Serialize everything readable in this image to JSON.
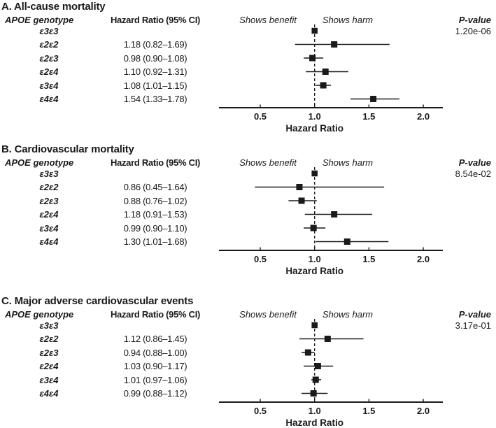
{
  "colors": {
    "ink": "#1a1a1a",
    "background": "#ffffff"
  },
  "figure": {
    "columns": {
      "genotype_header": "APOE genotype",
      "hr_header": "Hazard Ratio (95% CI)",
      "benefit_label": "Shows benefit",
      "harm_label": "Shows harm",
      "pvalue_header": "P-value"
    }
  },
  "chart_data": [
    {
      "type": "forest",
      "title": "A. All-cause mortality",
      "p_value": "1.20e-06",
      "xlabel": "Hazard Ratio",
      "xticks": [
        "0.5",
        "1.0",
        "1.5",
        "2.0"
      ],
      "xtick_values": [
        0.5,
        1.0,
        1.5,
        2.0
      ],
      "xlim": [
        0.12,
        2.18
      ],
      "reference_line": 1.0,
      "rows": [
        {
          "genotype": "ε3ε3",
          "ci_text": "",
          "hr": 1.0,
          "lo": null,
          "hi": null,
          "reference": true
        },
        {
          "genotype": "ε2ε2",
          "ci_text": "1.18 (0.82–1.69)",
          "hr": 1.18,
          "lo": 0.82,
          "hi": 1.69,
          "reference": false
        },
        {
          "genotype": "ε2ε3",
          "ci_text": "0.98 (0.90–1.08)",
          "hr": 0.98,
          "lo": 0.9,
          "hi": 1.08,
          "reference": false
        },
        {
          "genotype": "ε2ε4",
          "ci_text": "1.10 (0.92–1.31)",
          "hr": 1.1,
          "lo": 0.92,
          "hi": 1.31,
          "reference": false
        },
        {
          "genotype": "ε3ε4",
          "ci_text": "1.08 (1.01–1.15)",
          "hr": 1.08,
          "lo": 1.01,
          "hi": 1.15,
          "reference": false
        },
        {
          "genotype": "ε4ε4",
          "ci_text": "1.54 (1.33–1.78)",
          "hr": 1.54,
          "lo": 1.33,
          "hi": 1.78,
          "reference": false
        }
      ]
    },
    {
      "type": "forest",
      "title": "B. Cardiovascular mortality",
      "p_value": "8.54e-02",
      "xlabel": "Hazard Ratio",
      "xticks": [
        "0.5",
        "1.0",
        "1.5",
        "2.0"
      ],
      "xtick_values": [
        0.5,
        1.0,
        1.5,
        2.0
      ],
      "xlim": [
        0.12,
        2.18
      ],
      "reference_line": 1.0,
      "rows": [
        {
          "genotype": "ε3ε3",
          "ci_text": "",
          "hr": 1.0,
          "lo": null,
          "hi": null,
          "reference": true
        },
        {
          "genotype": "ε2ε2",
          "ci_text": "0.86 (0.45–1.64)",
          "hr": 0.86,
          "lo": 0.45,
          "hi": 1.64,
          "reference": false
        },
        {
          "genotype": "ε2ε3",
          "ci_text": "0.88 (0.76–1.02)",
          "hr": 0.88,
          "lo": 0.76,
          "hi": 1.02,
          "reference": false
        },
        {
          "genotype": "ε2ε4",
          "ci_text": "1.18 (0.91–1.53)",
          "hr": 1.18,
          "lo": 0.91,
          "hi": 1.53,
          "reference": false
        },
        {
          "genotype": "ε3ε4",
          "ci_text": "0.99 (0.90–1.10)",
          "hr": 0.99,
          "lo": 0.9,
          "hi": 1.1,
          "reference": false
        },
        {
          "genotype": "ε4ε4",
          "ci_text": "1.30 (1.01–1.68)",
          "hr": 1.3,
          "lo": 1.01,
          "hi": 1.68,
          "reference": false
        }
      ]
    },
    {
      "type": "forest",
      "title": "C. Major adverse cardiovascular events",
      "p_value": "3.17e-01",
      "xlabel": "Hazard Ratio",
      "xticks": [
        "0.5",
        "1.0",
        "1.5",
        "2.0"
      ],
      "xtick_values": [
        0.5,
        1.0,
        1.5,
        2.0
      ],
      "xlim": [
        0.12,
        2.18
      ],
      "reference_line": 1.0,
      "rows": [
        {
          "genotype": "ε3ε3",
          "ci_text": "",
          "hr": 1.0,
          "lo": null,
          "hi": null,
          "reference": true
        },
        {
          "genotype": "ε2ε2",
          "ci_text": "1.12 (0.86–1.45)",
          "hr": 1.12,
          "lo": 0.86,
          "hi": 1.45,
          "reference": false
        },
        {
          "genotype": "ε2ε3",
          "ci_text": "0.94 (0.88–1.00)",
          "hr": 0.94,
          "lo": 0.88,
          "hi": 1.0,
          "reference": false
        },
        {
          "genotype": "ε2ε4",
          "ci_text": "1.03 (0.90–1.17)",
          "hr": 1.03,
          "lo": 0.9,
          "hi": 1.17,
          "reference": false
        },
        {
          "genotype": "ε3ε4",
          "ci_text": "1.01 (0.97–1.06)",
          "hr": 1.01,
          "lo": 0.97,
          "hi": 1.06,
          "reference": false
        },
        {
          "genotype": "ε4ε4",
          "ci_text": "0.99 (0.88–1.12)",
          "hr": 0.99,
          "lo": 0.88,
          "hi": 1.12,
          "reference": false
        }
      ]
    }
  ]
}
